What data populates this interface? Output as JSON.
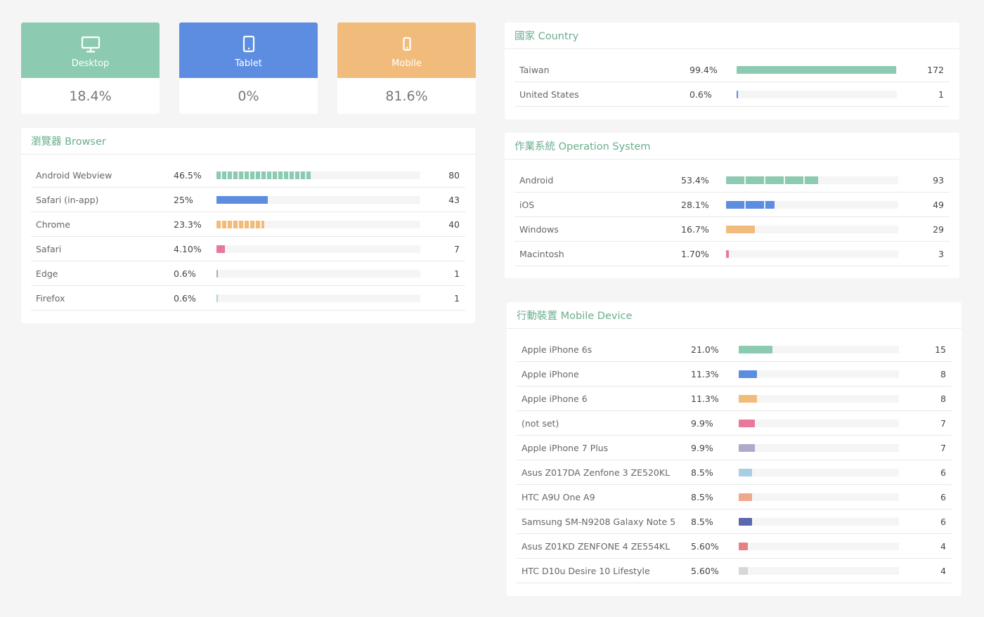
{
  "devices": [
    {
      "label": "Desktop",
      "value": "18.4%",
      "icon": "monitor-icon",
      "color": "#8ccbb1"
    },
    {
      "label": "Tablet",
      "value": "0%",
      "icon": "tablet-icon",
      "color": "#5d8de0"
    },
    {
      "label": "Mobile",
      "value": "81.6%",
      "icon": "mobile-icon",
      "color": "#f1bc7b"
    }
  ],
  "browser": {
    "title": "瀏覽器 Browser",
    "rows": [
      {
        "name": "Android Webview",
        "pct": "46.5%",
        "count": "80",
        "fraction": 0.465,
        "color": "#8ccbb1"
      },
      {
        "name": "Safari (in-app)",
        "pct": "25%",
        "count": "43",
        "fraction": 0.25,
        "color": "#5d8de0"
      },
      {
        "name": "Chrome",
        "pct": "23.3%",
        "count": "40",
        "fraction": 0.233,
        "color": "#f1bc7b"
      },
      {
        "name": "Safari",
        "pct": "4.10%",
        "count": "7",
        "fraction": 0.041,
        "color": "#e8799a"
      },
      {
        "name": "Edge",
        "pct": "0.6%",
        "count": "1",
        "fraction": 0.006,
        "color": "#b0a9c9"
      },
      {
        "name": "Firefox",
        "pct": "0.6%",
        "count": "1",
        "fraction": 0.006,
        "color": "#a7cfe4"
      }
    ]
  },
  "country": {
    "title": "國家 Country",
    "rows": [
      {
        "name": "Taiwan",
        "pct": "99.4%",
        "count": "172",
        "fraction": 0.994,
        "color": "#8ccbb1"
      },
      {
        "name": "United States",
        "pct": "0.6%",
        "count": "1",
        "fraction": 0.006,
        "color": "#5d8de0"
      }
    ]
  },
  "os": {
    "title": "作業系統 Operation System",
    "rows": [
      {
        "name": "Android",
        "pct": "53.4%",
        "count": "93",
        "fraction": 0.534,
        "color": "#8ccbb1"
      },
      {
        "name": "iOS",
        "pct": "28.1%",
        "count": "49",
        "fraction": 0.281,
        "color": "#5d8de0"
      },
      {
        "name": "Windows",
        "pct": "16.7%",
        "count": "29",
        "fraction": 0.167,
        "color": "#f1bc7b"
      },
      {
        "name": "Macintosh",
        "pct": "1.70%",
        "count": "3",
        "fraction": 0.017,
        "color": "#e8799a"
      }
    ]
  },
  "mobile": {
    "title": "行動裝置 Mobile Device",
    "rows": [
      {
        "name": "Apple iPhone 6s",
        "pct": "21.0%",
        "count": "15",
        "fraction": 0.21,
        "color": "#8ccbb1"
      },
      {
        "name": "Apple iPhone",
        "pct": "11.3%",
        "count": "8",
        "fraction": 0.113,
        "color": "#5d8de0"
      },
      {
        "name": "Apple iPhone 6",
        "pct": "11.3%",
        "count": "8",
        "fraction": 0.113,
        "color": "#f1bc7b"
      },
      {
        "name": "(not set)",
        "pct": "9.9%",
        "count": "7",
        "fraction": 0.099,
        "color": "#e8799a"
      },
      {
        "name": "Apple iPhone 7 Plus",
        "pct": "9.9%",
        "count": "7",
        "fraction": 0.099,
        "color": "#b0a9c9"
      },
      {
        "name": "Asus Z017DA Zenfone 3 ZE520KL",
        "pct": "8.5%",
        "count": "6",
        "fraction": 0.085,
        "color": "#a7cfe4"
      },
      {
        "name": "HTC A9U One A9",
        "pct": "8.5%",
        "count": "6",
        "fraction": 0.085,
        "color": "#f0a88a"
      },
      {
        "name": "Samsung SM-N9208 Galaxy Note 5",
        "pct": "8.5%",
        "count": "6",
        "fraction": 0.085,
        "color": "#5a69ae"
      },
      {
        "name": "Asus Z01KD ZENFONE 4 ZE554KL",
        "pct": "5.60%",
        "count": "4",
        "fraction": 0.056,
        "color": "#e78085"
      },
      {
        "name": "HTC D10u Desire 10 Lifestyle",
        "pct": "5.60%",
        "count": "4",
        "fraction": 0.056,
        "color": "#d7d7d7"
      }
    ]
  }
}
